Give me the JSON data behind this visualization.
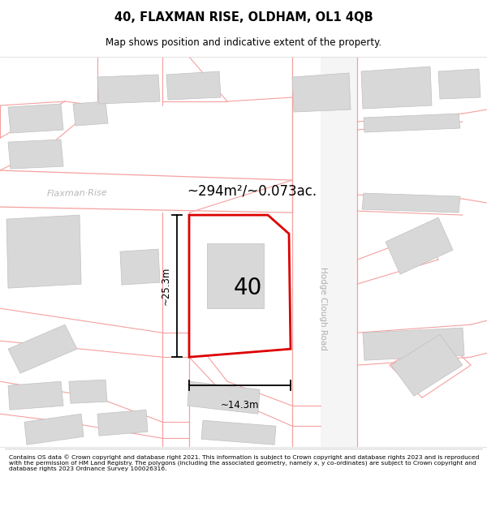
{
  "title": "40, FLAXMAN RISE, OLDHAM, OL1 4QB",
  "subtitle": "Map shows position and indicative extent of the property.",
  "area_label": "~294m²/~0.073ac.",
  "number_label": "40",
  "dim_h_label": "~25.3m",
  "dim_w_label": "~14.3m",
  "road_label_1": "Hodge Clough Road",
  "road_label_2": "Flaxman·Rise",
  "footer": "Contains OS data © Crown copyright and database right 2021. This information is subject to Crown copyright and database rights 2023 and is reproduced with the permission of HM Land Registry. The polygons (including the associated geometry, namely x, y co-ordinates) are subject to Crown copyright and database rights 2023 Ordnance Survey 100026316.",
  "bg_color": "#ffffff",
  "map_bg": "#ffffff",
  "building_fill": "#d8d8d8",
  "building_edge": "#c0c0c0",
  "plot_fill": "#ffffff",
  "plot_outline": "#dd0000",
  "road_line": "#f5a0a0",
  "road_fill": "#ffffff",
  "road_fill_light": "#f0f0f0",
  "dim_color": "#000000",
  "text_color": "#000000",
  "road_text_color": "#b0b0b0",
  "flaxman_text_color": "#b8b8b8"
}
